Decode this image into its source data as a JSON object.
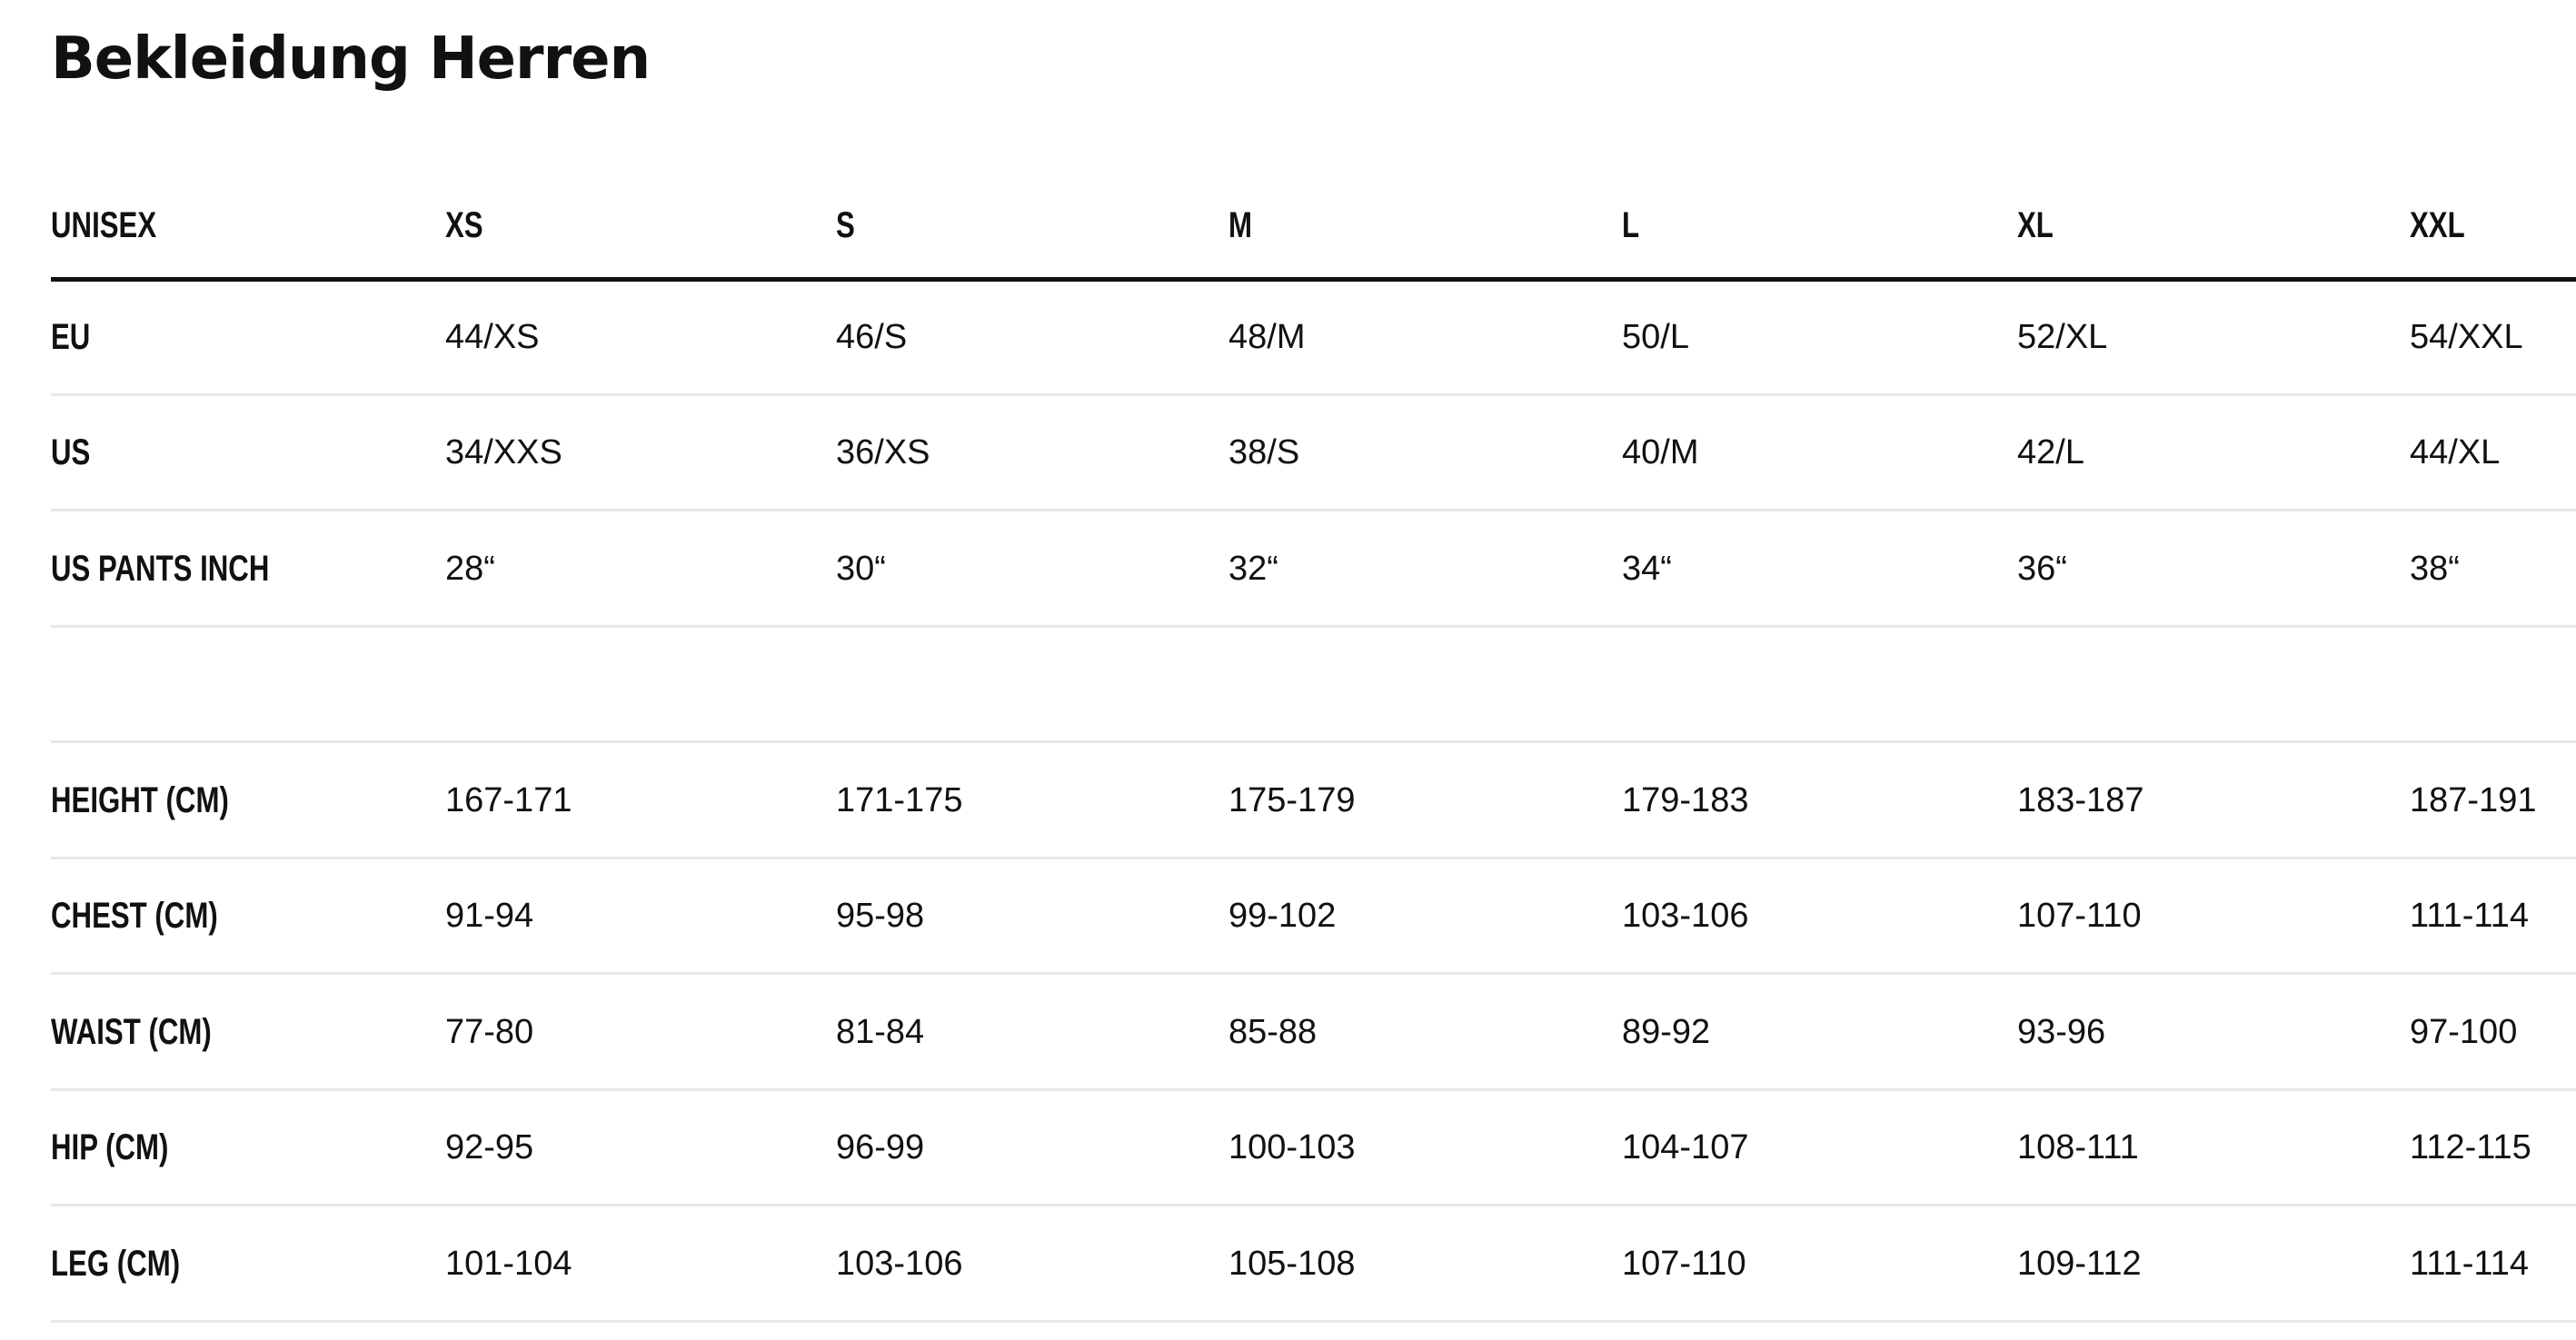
{
  "header": {
    "title": "Bekleidung Herren"
  },
  "table": {
    "columns": [
      "UNISEX",
      "XS",
      "S",
      "M",
      "L",
      "XL",
      "XXL"
    ],
    "size_rows": [
      [
        "EU",
        "44/XS",
        "46/S",
        "48/M",
        "50/L",
        "52/XL",
        "54/XXL"
      ],
      [
        "US",
        "34/XXS",
        "36/XS",
        "38/S",
        "40/M",
        "42/L",
        "44/XL"
      ],
      [
        "US PANTS INCH",
        "28“",
        "30“",
        "32“",
        "34“",
        "36“",
        "38“"
      ]
    ],
    "measure_rows": [
      [
        "HEIGHT (CM)",
        "167-171",
        "171-175",
        "175-179",
        "179-183",
        "183-187",
        "187-191"
      ],
      [
        "CHEST (CM)",
        "91-94",
        "95-98",
        "99-102",
        "103-106",
        "107-110",
        "111-114"
      ],
      [
        "WAIST (CM)",
        "77-80",
        "81-84",
        "85-88",
        "89-92",
        "93-96",
        "97-100"
      ],
      [
        "HIP (CM)",
        "92-95",
        "96-99",
        "100-103",
        "104-107",
        "108-111",
        "112-115"
      ],
      [
        "LEG (CM)",
        "101-104",
        "103-106",
        "105-108",
        "107-110",
        "109-112",
        "111-114"
      ]
    ]
  }
}
